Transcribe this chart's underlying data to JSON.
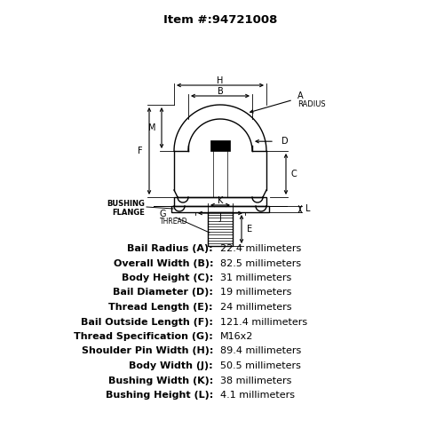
{
  "title": "Item #:94721008",
  "background_color": "#ffffff",
  "specs": [
    {
      "label": "Bail Radius (A):",
      "value": "22.4 millimeters"
    },
    {
      "label": "Overall Width (B):",
      "value": "82.5 millimeters"
    },
    {
      "label": "Body Height (C):",
      "value": "31 millimeters"
    },
    {
      "label": "Bail Diameter (D):",
      "value": "19 millimeters"
    },
    {
      "label": "Thread Length (E):",
      "value": "24 millimeters"
    },
    {
      "label": "Bail Outside Length (F):",
      "value": "121.4 millimeters"
    },
    {
      "label": "Thread Specification (G):",
      "value": "M16x2"
    },
    {
      "label": "Shoulder Pin Width (H):",
      "value": "89.4 millimeters"
    },
    {
      "label": "Body Width (J):",
      "value": "50.5 millimeters"
    },
    {
      "label": "Bushing Width (K):",
      "value": "38 millimeters"
    },
    {
      "label": "Bushing Height (L):",
      "value": "4.1 millimeters"
    }
  ],
  "text_color": "#000000",
  "line_color": "#000000",
  "label_fontsize": 8.0,
  "value_fontsize": 8.0,
  "title_fontsize": 9.5
}
